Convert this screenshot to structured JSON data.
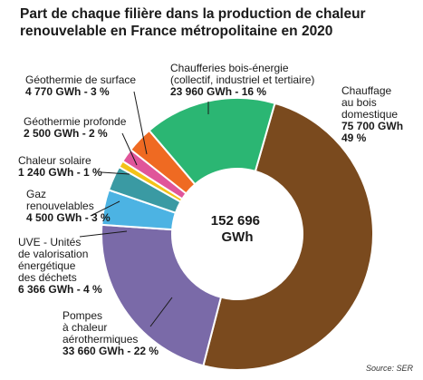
{
  "title": [
    "Part de chaque filière dans la production de chaleur",
    "renouvelable en France métropolitaine en 2020"
  ],
  "source": "Source: SER",
  "chart_data": {
    "type": "pie",
    "subtype": "donut",
    "title": "Part de chaque filière dans la production de chaleur renouvelable en France métropolitaine en 2020",
    "unit": "GWh",
    "total": {
      "value": "152 696",
      "unit": "GWh"
    },
    "slices": [
      {
        "key": "chauffage-bois",
        "name": [
          "Chauffage",
          "au bois",
          "domestique"
        ],
        "value_text": [
          "75 700 GWh",
          "49 %"
        ],
        "value": 75700,
        "percent": 49,
        "color": "#7a4a1e"
      },
      {
        "key": "pompes-chaleur",
        "name": [
          "Pompes",
          "à chaleur",
          "aérothermiques"
        ],
        "value_text": [
          "33 660 GWh - 22 %"
        ],
        "value": 33660,
        "percent": 22,
        "color": "#7a6aa8"
      },
      {
        "key": "uve",
        "name": [
          "UVE - Unités",
          "de valorisation",
          "énergétique",
          "des déchets"
        ],
        "value_text": [
          "6 366 GWh - 4 %"
        ],
        "value": 6366,
        "percent": 4,
        "color": "#4cb3e3"
      },
      {
        "key": "gaz-renouvelables",
        "name": [
          "Gaz",
          "renouvelables"
        ],
        "value_text": [
          "4 500 GWh - 3 %"
        ],
        "value": 4500,
        "percent": 3,
        "color": "#3a9aa3"
      },
      {
        "key": "chaleur-solaire",
        "name": [
          "Chaleur solaire"
        ],
        "value_text": [
          "1 240 GWh - 1 %"
        ],
        "value": 1240,
        "percent": 1,
        "color": "#f3c318"
      },
      {
        "key": "geothermie-profonde",
        "name": [
          "Géothermie profonde"
        ],
        "value_text": [
          "2 500 GWh - 2 %"
        ],
        "value": 2500,
        "percent": 2,
        "color": "#e0559a"
      },
      {
        "key": "geothermie-surface",
        "name": [
          "Géothermie de surface"
        ],
        "value_text": [
          "4 770 GWh - 3 %"
        ],
        "value": 4770,
        "percent": 3,
        "color": "#ef6a22"
      },
      {
        "key": "chaufferies-bois",
        "name": [
          "Chaufferies bois-énergie",
          "(collectif, industriel et tertiaire)"
        ],
        "value_text": [
          "23 960 GWh - 16 %"
        ],
        "value": 23960,
        "percent": 16,
        "color": "#2bb673"
      }
    ]
  }
}
